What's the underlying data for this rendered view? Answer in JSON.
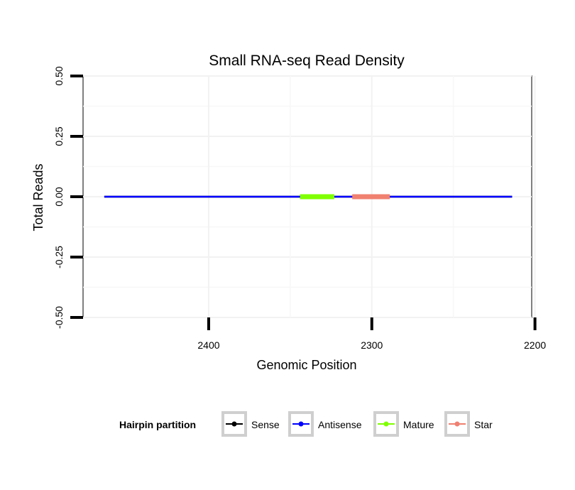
{
  "chart_data": {
    "type": "line",
    "title": "Small RNA-seq Read Density",
    "xlabel": "Genomic Position",
    "ylabel": "Total Reads",
    "x_reversed": true,
    "xlim": [
      2477,
      2202
    ],
    "ylim": [
      -0.5,
      0.5
    ],
    "x_ticks": [
      2400,
      2300,
      2200
    ],
    "x_tick_labels": [
      "2400",
      "2300",
      "2200"
    ],
    "y_ticks": [
      -0.5,
      -0.25,
      0,
      0.25,
      0.5
    ],
    "y_tick_labels": [
      "-0.50",
      "-0.25",
      "0.00",
      "0.25",
      "0.50"
    ],
    "grid": true,
    "legend_position": "bottom",
    "legend_title": "Hairpin partition",
    "series": [
      {
        "name": "Sense",
        "color": "#000000",
        "x": [
          2464,
          2214
        ],
        "y": [
          0,
          0
        ]
      },
      {
        "name": "Antisense",
        "color": "#0000ff",
        "x": [
          2464,
          2214
        ],
        "y": [
          0,
          0
        ]
      },
      {
        "name": "Mature",
        "color": "#7fff00",
        "x": [
          2344,
          2323
        ],
        "y": [
          0,
          0
        ]
      },
      {
        "name": "Star",
        "color": "#f08070",
        "x": [
          2312,
          2289
        ],
        "y": [
          0,
          0
        ]
      }
    ]
  }
}
